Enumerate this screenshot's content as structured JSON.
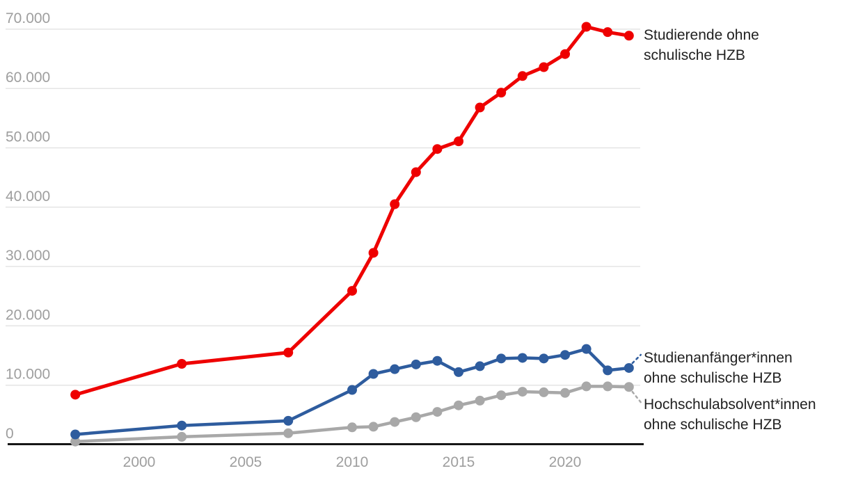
{
  "chart_data": {
    "type": "line",
    "title": "",
    "xlabel": "",
    "ylabel": "",
    "ylim": [
      0,
      70000
    ],
    "grid": "horizontal",
    "legend_position": "right-of-line-end",
    "x": [
      1997,
      2002,
      2007,
      2010,
      2011,
      2012,
      2013,
      2014,
      2015,
      2016,
      2017,
      2018,
      2019,
      2020,
      2021,
      2022,
      2023
    ],
    "series": [
      {
        "name": "Studierende ohne schulische HZB",
        "color": "#ee0000",
        "values": [
          8400,
          13600,
          15500,
          25900,
          32300,
          40500,
          45900,
          49800,
          51100,
          56800,
          59300,
          62100,
          63600,
          65800,
          70400,
          69500,
          68900
        ]
      },
      {
        "name": "Studienanfänger*innen ohne schulische HZB",
        "color": "#2e5c9e",
        "values": [
          1700,
          3200,
          4000,
          9200,
          11900,
          12700,
          13500,
          14100,
          12200,
          13200,
          14500,
          14600,
          14500,
          15100,
          16100,
          12500,
          12900
        ]
      },
      {
        "name": "Hochschulabsolvent*innen ohne schulische HZB",
        "color": "#a8a8a8",
        "values": [
          500,
          1300,
          1900,
          2900,
          3000,
          3800,
          4600,
          5500,
          6600,
          7400,
          8300,
          8900,
          8800,
          8700,
          9800,
          9800,
          9700
        ]
      }
    ],
    "y_ticks": [
      {
        "value": 0,
        "label": "0"
      },
      {
        "value": 10000,
        "label": "10.000"
      },
      {
        "value": 20000,
        "label": "20.000"
      },
      {
        "value": 30000,
        "label": "30.000"
      },
      {
        "value": 40000,
        "label": "40.000"
      },
      {
        "value": 50000,
        "label": "50.000"
      },
      {
        "value": 60000,
        "label": "60.000"
      },
      {
        "value": 70000,
        "label": "70.000"
      }
    ],
    "x_ticks": [
      {
        "value": 2000,
        "label": "2000"
      },
      {
        "value": 2005,
        "label": "2005"
      },
      {
        "value": 2010,
        "label": "2010"
      },
      {
        "value": 2015,
        "label": "2015"
      },
      {
        "value": 2020,
        "label": "2020"
      }
    ]
  },
  "legend": {
    "studierende": {
      "line1": "Studierende ohne",
      "line2": "schulische HZB"
    },
    "studienanfaenger": {
      "line1": "Studienanfänger*innen",
      "line2": "ohne schulische HZB"
    },
    "absolventen": {
      "line1": "Hochschulabsolvent*innen",
      "line2": "ohne schulische HZB"
    }
  },
  "colors": {
    "studierende_line": "#ee0000",
    "studienanfaenger_line": "#2e5c9e",
    "absolventen_line": "#a8a8a8",
    "gridline": "#e4e4e4",
    "axis_line": "#171717",
    "axis_tick_text": "#9e9e9e",
    "legend_text": "#212121",
    "background": "#ffffff"
  }
}
